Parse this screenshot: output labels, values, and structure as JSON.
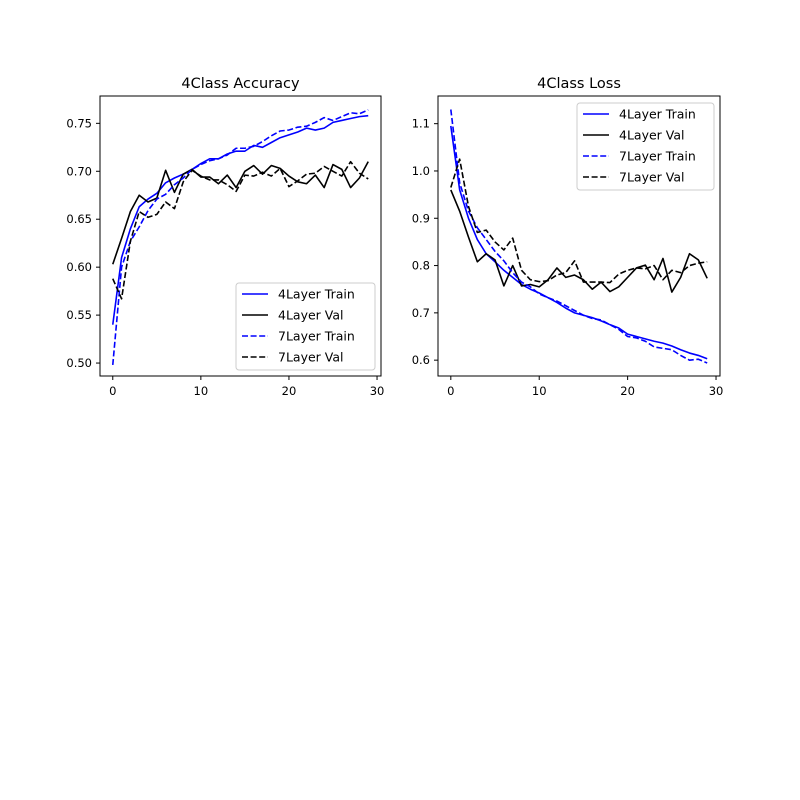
{
  "chart_data": [
    {
      "type": "line",
      "title": "4Class Accuracy",
      "xlabel": "",
      "ylabel": "",
      "xlim": [
        -1.45,
        30.45
      ],
      "ylim": [
        0.4865,
        0.7785
      ],
      "xticks": [
        0,
        10,
        20,
        30
      ],
      "xtick_labels": [
        "0",
        "10",
        "20",
        "30"
      ],
      "yticks": [
        0.5,
        0.55,
        0.6,
        0.65,
        0.7,
        0.75
      ],
      "ytick_labels": [
        "0.50",
        "0.55",
        "0.60",
        "0.65",
        "0.70",
        "0.75"
      ],
      "grid": false,
      "legend_position": "lower right",
      "x": [
        0,
        1,
        2,
        3,
        4,
        5,
        6,
        7,
        8,
        9,
        10,
        11,
        12,
        13,
        14,
        15,
        16,
        17,
        18,
        19,
        20,
        21,
        22,
        23,
        24,
        25,
        26,
        27,
        28,
        29
      ],
      "series": [
        {
          "name": "4Layer Train",
          "color": "#0000ff",
          "dash": "solid",
          "values": [
            0.54,
            0.61,
            0.64,
            0.663,
            0.671,
            0.677,
            0.688,
            0.693,
            0.697,
            0.702,
            0.708,
            0.713,
            0.713,
            0.718,
            0.721,
            0.721,
            0.727,
            0.725,
            0.73,
            0.735,
            0.738,
            0.741,
            0.745,
            0.743,
            0.745,
            0.751,
            0.753,
            0.755,
            0.757,
            0.758
          ]
        },
        {
          "name": "4Layer Val",
          "color": "#000000",
          "dash": "solid",
          "values": [
            0.603,
            0.63,
            0.658,
            0.675,
            0.668,
            0.672,
            0.701,
            0.678,
            0.697,
            0.702,
            0.694,
            0.694,
            0.687,
            0.696,
            0.683,
            0.7,
            0.706,
            0.697,
            0.706,
            0.703,
            0.695,
            0.689,
            0.687,
            0.696,
            0.683,
            0.707,
            0.702,
            0.683,
            0.693,
            0.71
          ]
        },
        {
          "name": "7Layer Train",
          "color": "#0000ff",
          "dash": "dashed",
          "values": [
            0.498,
            0.6,
            0.627,
            0.642,
            0.659,
            0.671,
            0.676,
            0.686,
            0.693,
            0.702,
            0.707,
            0.711,
            0.713,
            0.717,
            0.724,
            0.724,
            0.726,
            0.731,
            0.737,
            0.742,
            0.743,
            0.746,
            0.747,
            0.751,
            0.756,
            0.753,
            0.757,
            0.761,
            0.76,
            0.764
          ]
        },
        {
          "name": "7Layer Val",
          "color": "#000000",
          "dash": "dashed",
          "values": [
            0.588,
            0.567,
            0.627,
            0.658,
            0.652,
            0.655,
            0.668,
            0.661,
            0.689,
            0.701,
            0.695,
            0.691,
            0.691,
            0.686,
            0.679,
            0.696,
            0.695,
            0.699,
            0.695,
            0.703,
            0.684,
            0.69,
            0.697,
            0.698,
            0.705,
            0.7,
            0.695,
            0.71,
            0.698,
            0.692
          ]
        }
      ]
    },
    {
      "type": "line",
      "title": "4Class Loss",
      "xlabel": "",
      "ylabel": "",
      "xlim": [
        -1.45,
        30.45
      ],
      "ylim": [
        0.5665,
        1.1585
      ],
      "xticks": [
        0,
        10,
        20,
        30
      ],
      "xtick_labels": [
        "0",
        "10",
        "20",
        "30"
      ],
      "yticks": [
        0.6,
        0.7,
        0.8,
        0.9,
        1.0,
        1.1
      ],
      "ytick_labels": [
        "0.6",
        "0.7",
        "0.8",
        "0.9",
        "1.0",
        "1.1"
      ],
      "grid": false,
      "legend_position": "upper right",
      "x": [
        0,
        1,
        2,
        3,
        4,
        5,
        6,
        7,
        8,
        9,
        10,
        11,
        12,
        13,
        14,
        15,
        16,
        17,
        18,
        19,
        20,
        21,
        22,
        23,
        24,
        25,
        26,
        27,
        28,
        29
      ],
      "series": [
        {
          "name": "4Layer Train",
          "color": "#0000ff",
          "dash": "solid",
          "values": [
            1.095,
            0.96,
            0.9,
            0.855,
            0.825,
            0.808,
            0.79,
            0.775,
            0.76,
            0.75,
            0.742,
            0.732,
            0.722,
            0.71,
            0.7,
            0.695,
            0.69,
            0.683,
            0.675,
            0.668,
            0.655,
            0.65,
            0.645,
            0.64,
            0.636,
            0.63,
            0.622,
            0.615,
            0.61,
            0.603
          ]
        },
        {
          "name": "4Layer Val",
          "color": "#000000",
          "dash": "solid",
          "values": [
            0.96,
            0.915,
            0.86,
            0.808,
            0.825,
            0.812,
            0.757,
            0.8,
            0.757,
            0.76,
            0.755,
            0.77,
            0.795,
            0.775,
            0.78,
            0.77,
            0.75,
            0.765,
            0.745,
            0.755,
            0.775,
            0.795,
            0.801,
            0.77,
            0.815,
            0.744,
            0.775,
            0.825,
            0.812,
            0.773
          ]
        },
        {
          "name": "7Layer Train",
          "color": "#0000ff",
          "dash": "dashed",
          "values": [
            1.13,
            0.975,
            0.915,
            0.88,
            0.855,
            0.83,
            0.81,
            0.785,
            0.765,
            0.755,
            0.74,
            0.732,
            0.725,
            0.715,
            0.705,
            0.695,
            0.688,
            0.685,
            0.675,
            0.665,
            0.65,
            0.647,
            0.64,
            0.628,
            0.625,
            0.622,
            0.61,
            0.6,
            0.602,
            0.594
          ]
        },
        {
          "name": "7Layer Val",
          "color": "#000000",
          "dash": "dashed",
          "values": [
            0.965,
            1.025,
            0.925,
            0.87,
            0.875,
            0.85,
            0.833,
            0.858,
            0.79,
            0.77,
            0.766,
            0.768,
            0.78,
            0.785,
            0.81,
            0.765,
            0.765,
            0.765,
            0.764,
            0.782,
            0.79,
            0.795,
            0.793,
            0.8,
            0.77,
            0.79,
            0.785,
            0.8,
            0.805,
            0.808
          ]
        }
      ]
    }
  ]
}
